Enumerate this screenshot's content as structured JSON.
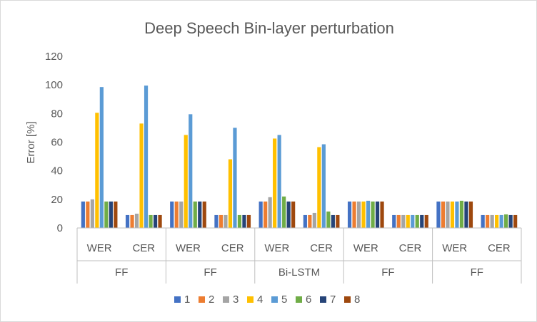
{
  "chart_data": {
    "type": "bar",
    "title": "Deep Speech Bin-layer perturbation",
    "ylabel": "Error [%]",
    "xlabel": "",
    "ylim": [
      0,
      120
    ],
    "yticks": [
      0,
      20,
      40,
      60,
      80,
      100,
      120
    ],
    "grid": false,
    "legend_position": "bottom",
    "groups": [
      {
        "label": "FF",
        "categories": [
          "WER",
          "CER"
        ]
      },
      {
        "label": "FF",
        "categories": [
          "WER",
          "CER"
        ]
      },
      {
        "label": "Bi-LSTM",
        "categories": [
          "WER",
          "CER"
        ]
      },
      {
        "label": "FF",
        "categories": [
          "WER",
          "CER"
        ]
      },
      {
        "label": "FF",
        "categories": [
          "WER",
          "CER"
        ]
      }
    ],
    "categories": [
      "WER",
      "CER",
      "WER",
      "CER",
      "WER",
      "CER",
      "WER",
      "CER",
      "WER",
      "CER"
    ],
    "series": [
      {
        "name": "1",
        "color": "#4472C4",
        "values": [
          18.5,
          9,
          18.5,
          9,
          18.5,
          9,
          18.5,
          9,
          18.5,
          9
        ]
      },
      {
        "name": "2",
        "color": "#ED7D31",
        "values": [
          18.5,
          9,
          18.5,
          9,
          18.5,
          9,
          18.5,
          9,
          18.5,
          9
        ]
      },
      {
        "name": "3",
        "color": "#A5A5A5",
        "values": [
          20,
          10,
          18.5,
          9,
          21.5,
          10.5,
          18.5,
          9,
          18.5,
          9
        ]
      },
      {
        "name": "4",
        "color": "#FFC000",
        "values": [
          80.5,
          73,
          65,
          48,
          62.5,
          56.5,
          18.5,
          9,
          18.5,
          9
        ]
      },
      {
        "name": "5",
        "color": "#5B9BD5",
        "values": [
          98.5,
          99.5,
          79.5,
          70,
          65,
          58.5,
          19,
          9,
          18.5,
          9
        ]
      },
      {
        "name": "6",
        "color": "#70AD47",
        "values": [
          18.5,
          9,
          18.5,
          9,
          22,
          11.5,
          18.5,
          9,
          19,
          9.5
        ]
      },
      {
        "name": "7",
        "color": "#264478",
        "values": [
          18.5,
          9,
          18.5,
          9,
          18.5,
          9,
          18.5,
          9,
          18.5,
          9
        ]
      },
      {
        "name": "8",
        "color": "#9E480E",
        "values": [
          18.5,
          9,
          18.5,
          9,
          18.5,
          9,
          18.5,
          9,
          18.5,
          9
        ]
      }
    ]
  }
}
